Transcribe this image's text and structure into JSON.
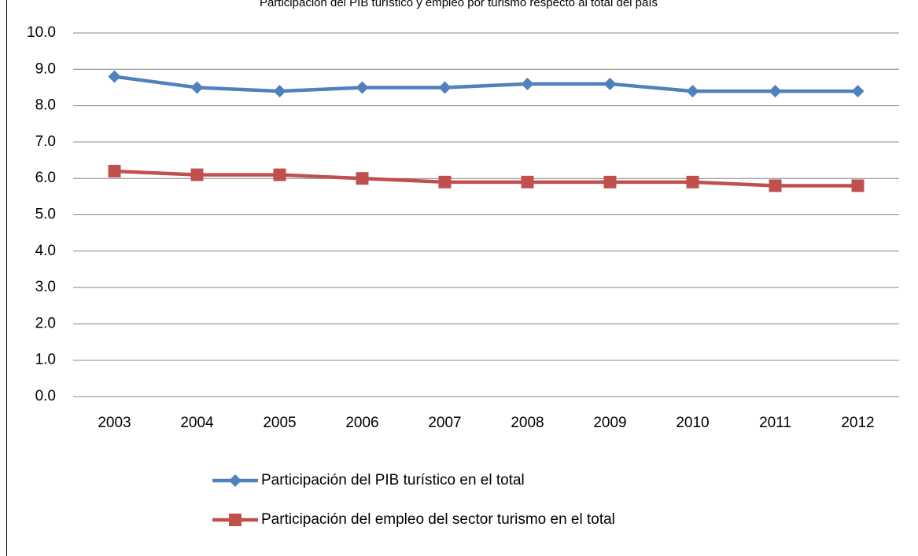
{
  "chart_data": {
    "type": "line",
    "title": "Participación del PIB turístico y empleo por turismo respecto al total del país",
    "categories": [
      "2003",
      "2004",
      "2005",
      "2006",
      "2007",
      "2008",
      "2009",
      "2010",
      "2011",
      "2012"
    ],
    "series": [
      {
        "name": "Participación del PIB turístico en el total",
        "color": "#4f81bd",
        "marker": "diamond",
        "values": [
          8.8,
          8.5,
          8.4,
          8.5,
          8.5,
          8.6,
          8.6,
          8.4,
          8.4,
          8.4
        ]
      },
      {
        "name": "Participación del empleo del sector turismo en el total",
        "color": "#c0504d",
        "marker": "square",
        "values": [
          6.2,
          6.1,
          6.1,
          6.0,
          5.9,
          5.9,
          5.9,
          5.9,
          5.8,
          5.8
        ]
      }
    ],
    "ylim": [
      0,
      10
    ],
    "yticks": [
      {
        "value": 0,
        "label": "0.0"
      },
      {
        "value": 1,
        "label": "1.0"
      },
      {
        "value": 2,
        "label": "2.0"
      },
      {
        "value": 3,
        "label": "3.0"
      },
      {
        "value": 4,
        "label": "4.0"
      },
      {
        "value": 5,
        "label": "5.0"
      },
      {
        "value": 6,
        "label": "6.0"
      },
      {
        "value": 7,
        "label": "7.0"
      },
      {
        "value": 8,
        "label": "8.0"
      },
      {
        "value": 9,
        "label": "9.0"
      },
      {
        "value": 10,
        "label": "10.0"
      }
    ],
    "grid": true,
    "legend": "bottom"
  }
}
